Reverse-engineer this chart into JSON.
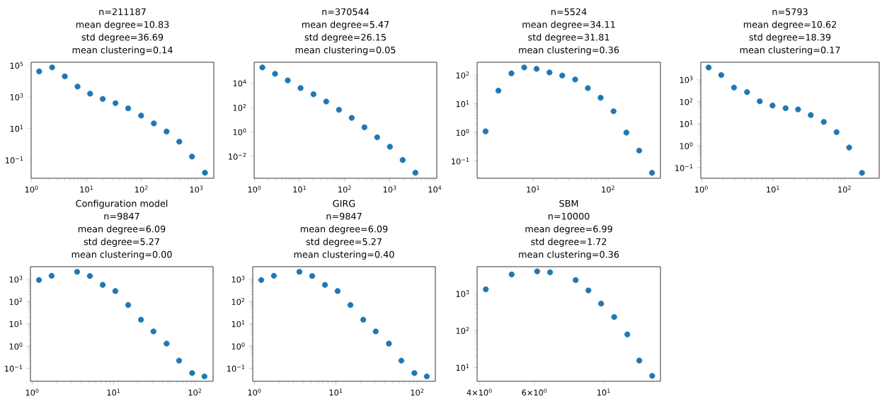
{
  "chart_data": [
    {
      "type": "scatter",
      "annotations": [
        "n=211187",
        "mean degree=10.83",
        "std degree=36.69",
        "mean clustering=0.14"
      ],
      "log": "xy",
      "marker": "circle",
      "color": "#1f77b4",
      "x": [
        1.37,
        2.36,
        4.02,
        6.85,
        11.6,
        19.7,
        33.6,
        57.2,
        98.5,
        168,
        286,
        487,
        830,
        1428
      ],
      "values": [
        40700,
        73300,
        19700,
        4470,
        1580,
        740,
        398,
        186,
        64.6,
        20.6,
        6.3,
        1.44,
        0.163,
        0.0155
      ],
      "xlim": [
        0.98,
        2070
      ],
      "ylim": [
        0.0069,
        155000
      ],
      "xticks": [
        {
          "value": 1,
          "label": "10$^{0}$"
        },
        {
          "value": 10,
          "label": "10$^{1}$"
        },
        {
          "value": 100,
          "label": "10$^{2}$"
        },
        {
          "value": 1000,
          "label": "10$^{3}$"
        }
      ],
      "yticks": [
        {
          "value": 0.1,
          "label": "10$^{−1}$"
        },
        {
          "value": 10,
          "label": "10$^{1}$"
        },
        {
          "value": 1000,
          "label": "10$^{3}$"
        },
        {
          "value": 100000,
          "label": "10$^{5}$"
        }
      ]
    },
    {
      "type": "scatter",
      "annotations": [
        "n=370544",
        "mean degree=5.47",
        "std degree=26.15",
        "mean clustering=0.05"
      ],
      "log": "xy",
      "marker": "circle",
      "color": "#1f77b4",
      "x": [
        1.49,
        2.85,
        5.46,
        10.5,
        20.3,
        38.9,
        74.5,
        143,
        274,
        524,
        1005,
        1926,
        3690
      ],
      "values": [
        191000,
        57100,
        16400,
        3900,
        1220,
        305,
        64,
        14,
        2.34,
        0.357,
        0.0598,
        0.0049,
        0.00044
      ],
      "xlim": [
        0.98,
        11000
      ],
      "ylim": [
        0.000155,
        510000
      ],
      "xticks": [
        {
          "value": 1,
          "label": "10$^{0}$"
        },
        {
          "value": 10,
          "label": "10$^{1}$"
        },
        {
          "value": 100,
          "label": "10$^{2}$"
        },
        {
          "value": 1000,
          "label": "10$^{3}$"
        },
        {
          "value": 10000,
          "label": "10$^{4}$"
        }
      ],
      "yticks": [
        {
          "value": 0.01,
          "label": "10$^{−2}$"
        },
        {
          "value": 1,
          "label": "10$^{0}$"
        },
        {
          "value": 100,
          "label": "10$^{2}$"
        },
        {
          "value": 10000,
          "label": "10$^{4}$"
        }
      ]
    },
    {
      "type": "scatter",
      "annotations": [
        "n=5524",
        "mean degree=34.11",
        "std degree=31.81",
        "mean clustering=0.36"
      ],
      "log": "xy",
      "marker": "circle",
      "color": "#1f77b4",
      "x": [
        2.32,
        3.44,
        5.13,
        7.59,
        11.1,
        16.5,
        24.4,
        36.3,
        53.6,
        79.3,
        118,
        175,
        259,
        384
      ],
      "values": [
        1.08,
        28.5,
        114,
        184,
        164,
        123,
        96,
        70,
        35,
        16.1,
        5.45,
        0.98,
        0.231,
        0.0386
      ],
      "xlim": [
        1.79,
        498
      ],
      "ylim": [
        0.025,
        279
      ],
      "xticks": [
        {
          "value": 10,
          "label": "10$^{1}$"
        },
        {
          "value": 100,
          "label": "10$^{2}$"
        }
      ],
      "yticks": [
        {
          "value": 0.1,
          "label": "10$^{−1}$"
        },
        {
          "value": 1,
          "label": "10$^{0}$"
        },
        {
          "value": 10,
          "label": "10$^{1}$"
        },
        {
          "value": 100,
          "label": "10$^{2}$"
        }
      ]
    },
    {
      "type": "scatter",
      "annotations": [
        "n=5793",
        "mean degree=10.62",
        "std degree=18.39",
        "mean clustering=0.17"
      ],
      "log": "xy",
      "marker": "circle",
      "color": "#1f77b4",
      "x": [
        1.26,
        1.89,
        2.85,
        4.34,
        6.53,
        9.85,
        15.0,
        22.4,
        33.7,
        51.3,
        77.3,
        116,
        175
      ],
      "values": [
        3530,
        1600,
        430,
        269,
        103,
        66,
        50,
        44,
        24.4,
        11.9,
        4.1,
        0.82,
        0.058
      ],
      "xlim": [
        0.98,
        305
      ],
      "ylim": [
        0.033,
        6100
      ],
      "xticks": [
        {
          "value": 1,
          "label": "10$^{0}$"
        },
        {
          "value": 10,
          "label": "10$^{1}$"
        },
        {
          "value": 100,
          "label": "10$^{2}$"
        }
      ],
      "yticks": [
        {
          "value": 0.1,
          "label": "10$^{−1}$"
        },
        {
          "value": 1,
          "label": "10$^{0}$"
        },
        {
          "value": 10,
          "label": "10$^{1}$"
        },
        {
          "value": 100,
          "label": "10$^{2}$"
        },
        {
          "value": 1000,
          "label": "10$^{3}$"
        }
      ]
    },
    {
      "type": "scatter",
      "title": "Configuration model",
      "annotations": [
        "n=9847",
        "mean degree=6.09",
        "std degree=5.27",
        "mean clustering=0.00"
      ],
      "log": "xy",
      "marker": "circle",
      "color": "#1f77b4",
      "x": [
        1.21,
        1.73,
        3.56,
        5.11,
        7.34,
        10.5,
        15.1,
        21.7,
        30.9,
        44.8,
        63.8,
        92.3,
        131
      ],
      "values": [
        916,
        1420,
        2140,
        1380,
        556,
        292,
        69,
        15.1,
        4.5,
        1.28,
        0.22,
        0.061,
        0.043
      ],
      "xlim": [
        0.95,
        167
      ],
      "ylim": [
        0.026,
        3630
      ],
      "xticks": [
        {
          "value": 1,
          "label": "10$^{0}$"
        },
        {
          "value": 10,
          "label": "10$^{1}$"
        },
        {
          "value": 100,
          "label": "10$^{2}$"
        }
      ],
      "yticks": [
        {
          "value": 0.1,
          "label": "10$^{−1}$"
        },
        {
          "value": 1,
          "label": "10$^{0}$"
        },
        {
          "value": 10,
          "label": "10$^{1}$"
        },
        {
          "value": 100,
          "label": "10$^{2}$"
        },
        {
          "value": 1000,
          "label": "10$^{3}$"
        }
      ]
    },
    {
      "type": "scatter",
      "title": "GIRG",
      "annotations": [
        "n=9847",
        "mean degree=6.09",
        "std degree=5.27",
        "mean clustering=0.40"
      ],
      "log": "xy",
      "marker": "circle",
      "color": "#1f77b4",
      "x": [
        1.21,
        1.73,
        3.56,
        5.11,
        7.34,
        10.5,
        15.1,
        21.7,
        30.9,
        44.8,
        63.8,
        92.3,
        131
      ],
      "values": [
        916,
        1420,
        2140,
        1380,
        556,
        292,
        69,
        15.1,
        4.5,
        1.28,
        0.22,
        0.061,
        0.043
      ],
      "xlim": [
        0.95,
        167
      ],
      "ylim": [
        0.026,
        3630
      ],
      "xticks": [
        {
          "value": 1,
          "label": "10$^{0}$"
        },
        {
          "value": 10,
          "label": "10$^{1}$"
        },
        {
          "value": 100,
          "label": "10$^{2}$"
        }
      ],
      "yticks": [
        {
          "value": 0.1,
          "label": "10$^{−1}$"
        },
        {
          "value": 1,
          "label": "10$^{0}$"
        },
        {
          "value": 10,
          "label": "10$^{1}$"
        },
        {
          "value": 100,
          "label": "10$^{2}$"
        },
        {
          "value": 1000,
          "label": "10$^{3}$"
        }
      ]
    },
    {
      "type": "scatter",
      "title": "SBM",
      "annotations": [
        "n=10000",
        "mean degree=6.99",
        "std degree=1.72",
        "mean clustering=0.36"
      ],
      "log": "xy",
      "marker": "circle",
      "color": "#1f77b4",
      "x": [
        4.19,
        5.07,
        6.12,
        6.73,
        8.13,
        8.93,
        9.81,
        10.8,
        11.9,
        13.0,
        14.3
      ],
      "values": [
        1300,
        3280,
        3970,
        3740,
        2310,
        1210,
        532,
        231,
        78,
        15.3,
        5.9
      ],
      "xlim": [
        3.93,
        15.2
      ],
      "ylim": [
        4.2,
        5320
      ],
      "xticks": [
        {
          "value": 4,
          "label": "4×10$^{0}$"
        },
        {
          "value": 6,
          "label": "6×10$^{0}$"
        },
        {
          "value": 10,
          "label": "10$^{1}$"
        }
      ],
      "yticks": [
        {
          "value": 10,
          "label": "10$^{1}$"
        },
        {
          "value": 100,
          "label": "10$^{2}$"
        },
        {
          "value": 1000,
          "label": "10$^{3}$"
        }
      ]
    }
  ]
}
